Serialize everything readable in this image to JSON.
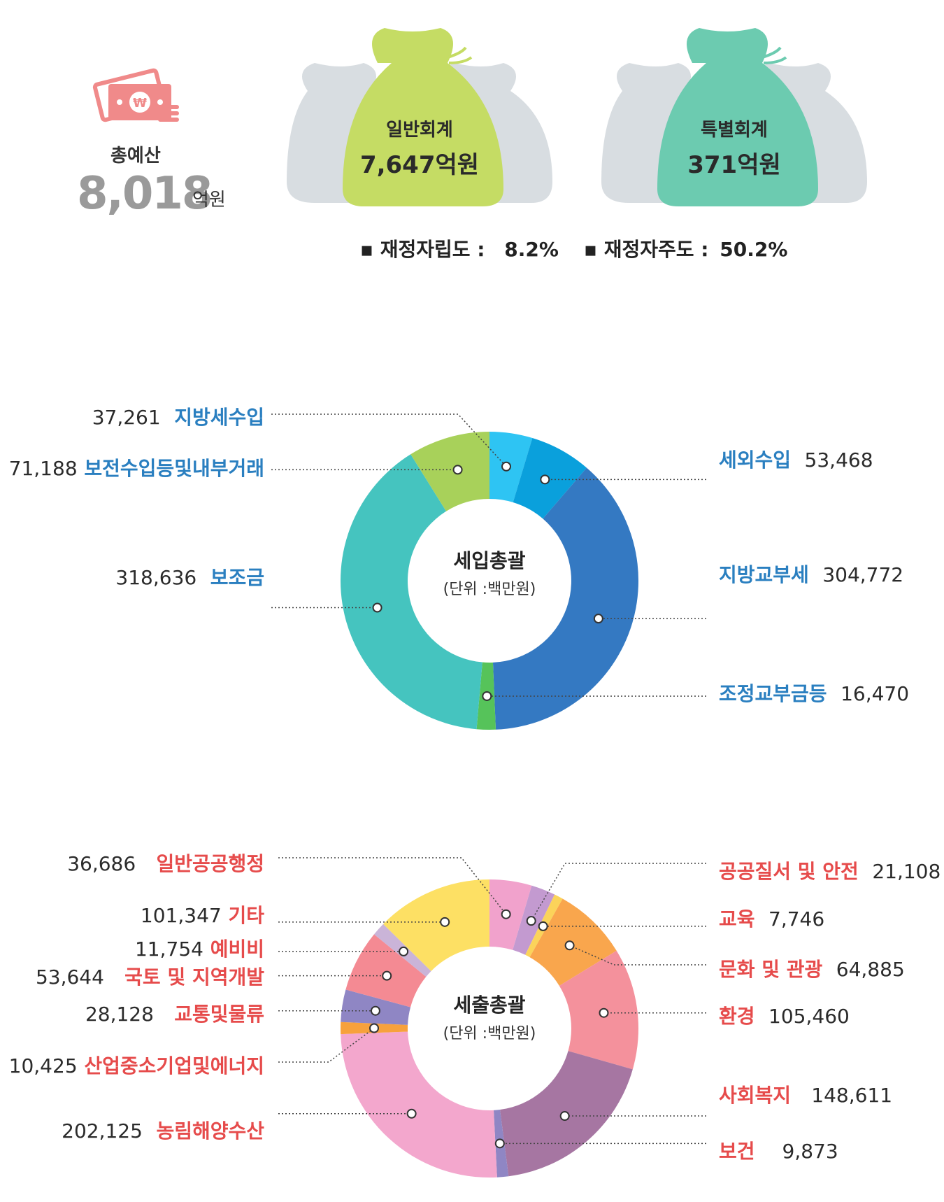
{
  "summary": {
    "total_label": "총예산",
    "total_value": "8,018",
    "total_unit": "억원",
    "general_label": "일반회계",
    "general_value": "7,647억원",
    "special_label": "특별회계",
    "special_value": "371억원",
    "ratio1_label": "▪ 재정자립도 :",
    "ratio1_value": "8.2%",
    "ratio2_label": "▪ 재정자주도 :",
    "ratio2_value": "50.2%"
  },
  "colors": {
    "general_bag": "#c5dc64",
    "special_bag": "#6ccbb0",
    "back_bag": "#d8dde1",
    "icon_pink": "#f08a8a"
  },
  "chart_data": [
    {
      "type": "pie",
      "title": "세입총괄",
      "subtitle": "(단위 :백만원)",
      "slices": [
        {
          "label": "지방세수입",
          "value": 37261,
          "value_text": "37,261",
          "color": "#2ec4f3"
        },
        {
          "label": "세외수입",
          "value": 53468,
          "value_text": "53,468",
          "color": "#0aa0dc"
        },
        {
          "label": "지방교부세",
          "value": 304772,
          "value_text": "304,772",
          "color": "#3479c2"
        },
        {
          "label": "조정교부금등",
          "value": 16470,
          "value_text": "16,470",
          "color": "#56c35a"
        },
        {
          "label": "보조금",
          "value": 318636,
          "value_text": "318,636",
          "color": "#45c4bf"
        },
        {
          "label": "보전수입등및내부거래",
          "value": 71188,
          "value_text": "71,188",
          "color": "#a8d15a"
        }
      ]
    },
    {
      "type": "pie",
      "title": "세출총괄",
      "subtitle": "(단위 :백만원)",
      "slices": [
        {
          "label": "일반공공행정",
          "value": 36686,
          "value_text": "36,686",
          "color": "#f1a2cc"
        },
        {
          "label": "공공질서 및 안전",
          "value": 21108,
          "value_text": "21,108",
          "color": "#c39ad0"
        },
        {
          "label": "교육",
          "value": 7746,
          "value_text": "7,746",
          "color": "#fbd35a"
        },
        {
          "label": "문화 및 관광",
          "value": 64885,
          "value_text": "64,885",
          "color": "#f9a64d"
        },
        {
          "label": "환경",
          "value": 105460,
          "value_text": "105,460",
          "color": "#f4919c"
        },
        {
          "label": "사회복지",
          "value": 148611,
          "value_text": "148,611",
          "color": "#a676a2"
        },
        {
          "label": "보건",
          "value": 9873,
          "value_text": "9,873",
          "color": "#8f86c4"
        },
        {
          "label": "농림해양수산",
          "value": 202125,
          "value_text": "202,125",
          "color": "#f3a7cd"
        },
        {
          "label": "산업중소기업및에너지",
          "value": 10425,
          "value_text": "10,425",
          "color": "#f7a13c"
        },
        {
          "label": "교통및물류",
          "value": 28128,
          "value_text": "28,128",
          "color": "#8f86c4"
        },
        {
          "label": "국토 및 지역개발",
          "value": 53644,
          "value_text": "53,644",
          "color": "#f48a93"
        },
        {
          "label": "예비비",
          "value": 11754,
          "value_text": "11,754",
          "color": "#cab4d8"
        },
        {
          "label": "기타",
          "value": 101347,
          "value_text": "101,347",
          "color": "#fde064"
        }
      ]
    }
  ]
}
